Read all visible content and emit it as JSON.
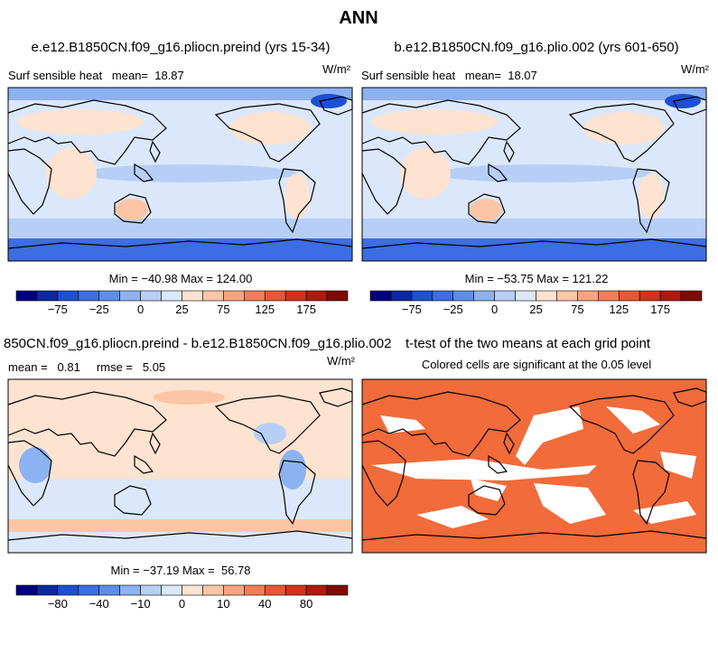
{
  "title": "ANN",
  "panels": [
    {
      "title": "e.e12.B1850CN.f09_g16.pliocn.preind (yrs 15-34)",
      "left": "Surf sensible heat   mean=  18.87",
      "units": "W/m²",
      "stats": "Min = −40.98 Max = 124.00",
      "colorbar": {
        "colors": [
          "#00007f",
          "#0b2aa0",
          "#1e4fd2",
          "#3c6de2",
          "#5f8ee9",
          "#8db2f1",
          "#b7cff6",
          "#dbe8fb",
          "#fde3d0",
          "#fcc6a6",
          "#f9a47f",
          "#f47d57",
          "#ea5633",
          "#d4321b",
          "#b2180e",
          "#7f0a02"
        ],
        "labels": [
          "−75",
          "−25",
          "0",
          "25",
          "75",
          "125",
          "175"
        ]
      }
    },
    {
      "title": "b.e12.B1850CN.f09_g16.plio.002 (yrs 601-650)",
      "left": "Surf sensible heat   mean=  18.07",
      "units": "W/m²",
      "stats": "Min = −53.75 Max = 121.22",
      "colorbar": {
        "colors": [
          "#00007f",
          "#0b2aa0",
          "#1e4fd2",
          "#3c6de2",
          "#5f8ee9",
          "#8db2f1",
          "#b7cff6",
          "#dbe8fb",
          "#fde3d0",
          "#fcc6a6",
          "#f9a47f",
          "#f47d57",
          "#ea5633",
          "#d4321b",
          "#b2180e",
          "#7f0a02"
        ],
        "labels": [
          "−75",
          "−25",
          "0",
          "25",
          "75",
          "125",
          "175"
        ]
      }
    },
    {
      "title": "850CN.f09_g16.pliocn.preind - b.e12.B1850CN.f09_g16.plio.002",
      "left": "mean =   0.81     rmse =   5.05",
      "units": "W/m²",
      "stats": "Min = −37.19 Max =  56.78",
      "colorbar": {
        "colors": [
          "#00007f",
          "#0b2aa0",
          "#1e4fd2",
          "#3c6de2",
          "#5f8ee9",
          "#8db2f1",
          "#b7cff6",
          "#dbe8fb",
          "#fde3d0",
          "#fcc6a6",
          "#f9a47f",
          "#f47d57",
          "#ea5633",
          "#d4321b",
          "#b2180e",
          "#7f0a02"
        ],
        "labels": [
          "−80",
          "−40",
          "−10",
          "0",
          "10",
          "40",
          "80"
        ]
      }
    },
    {
      "title": "t-test of the two means at each grid point",
      "left": "Colored cells are significant at the 0.05 level",
      "color": "#f26b3a"
    }
  ]
}
